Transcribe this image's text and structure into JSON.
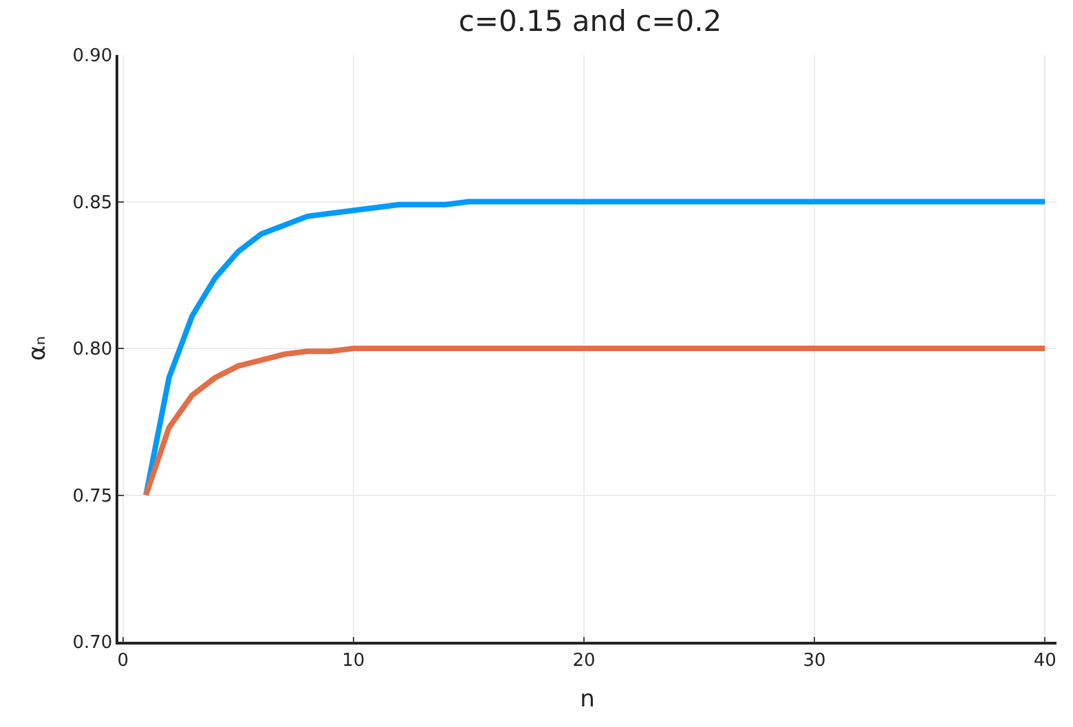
{
  "chart_data": {
    "type": "line",
    "title": "c=0.15 and c=0.2",
    "xlabel": "n",
    "ylabel": "αₙ",
    "x": [
      1,
      2,
      3,
      4,
      5,
      6,
      7,
      8,
      9,
      10,
      11,
      12,
      13,
      14,
      15,
      16,
      17,
      18,
      19,
      20,
      21,
      22,
      23,
      24,
      25,
      26,
      27,
      28,
      29,
      30,
      31,
      32,
      33,
      34,
      35,
      36,
      37,
      38,
      39,
      40
    ],
    "series": [
      {
        "color": "#009afa",
        "values": [
          0.75,
          0.79,
          0.811,
          0.824,
          0.833,
          0.839,
          0.842,
          0.845,
          0.846,
          0.847,
          0.848,
          0.849,
          0.849,
          0.849,
          0.85,
          0.85,
          0.85,
          0.85,
          0.85,
          0.85,
          0.85,
          0.85,
          0.85,
          0.85,
          0.85,
          0.85,
          0.85,
          0.85,
          0.85,
          0.85,
          0.85,
          0.85,
          0.85,
          0.85,
          0.85,
          0.85,
          0.85,
          0.85,
          0.85,
          0.85
        ]
      },
      {
        "color": "#e26f46",
        "values": [
          0.75,
          0.773,
          0.784,
          0.79,
          0.794,
          0.796,
          0.798,
          0.799,
          0.799,
          0.8,
          0.8,
          0.8,
          0.8,
          0.8,
          0.8,
          0.8,
          0.8,
          0.8,
          0.8,
          0.8,
          0.8,
          0.8,
          0.8,
          0.8,
          0.8,
          0.8,
          0.8,
          0.8,
          0.8,
          0.8,
          0.8,
          0.8,
          0.8,
          0.8,
          0.8,
          0.8,
          0.8,
          0.8,
          0.8,
          0.8
        ]
      }
    ],
    "xlim": [
      -0.2,
      40.5
    ],
    "xticks": [
      0,
      10,
      20,
      30,
      40
    ],
    "ylim": [
      0.7,
      0.9
    ],
    "yticks": [
      {
        "value": 0.7,
        "label": "0.70"
      },
      {
        "value": 0.75,
        "label": "0.75"
      },
      {
        "value": 0.8,
        "label": "0.80"
      },
      {
        "value": 0.85,
        "label": "0.85"
      },
      {
        "value": 0.9,
        "label": "0.90"
      }
    ],
    "grid": true
  }
}
